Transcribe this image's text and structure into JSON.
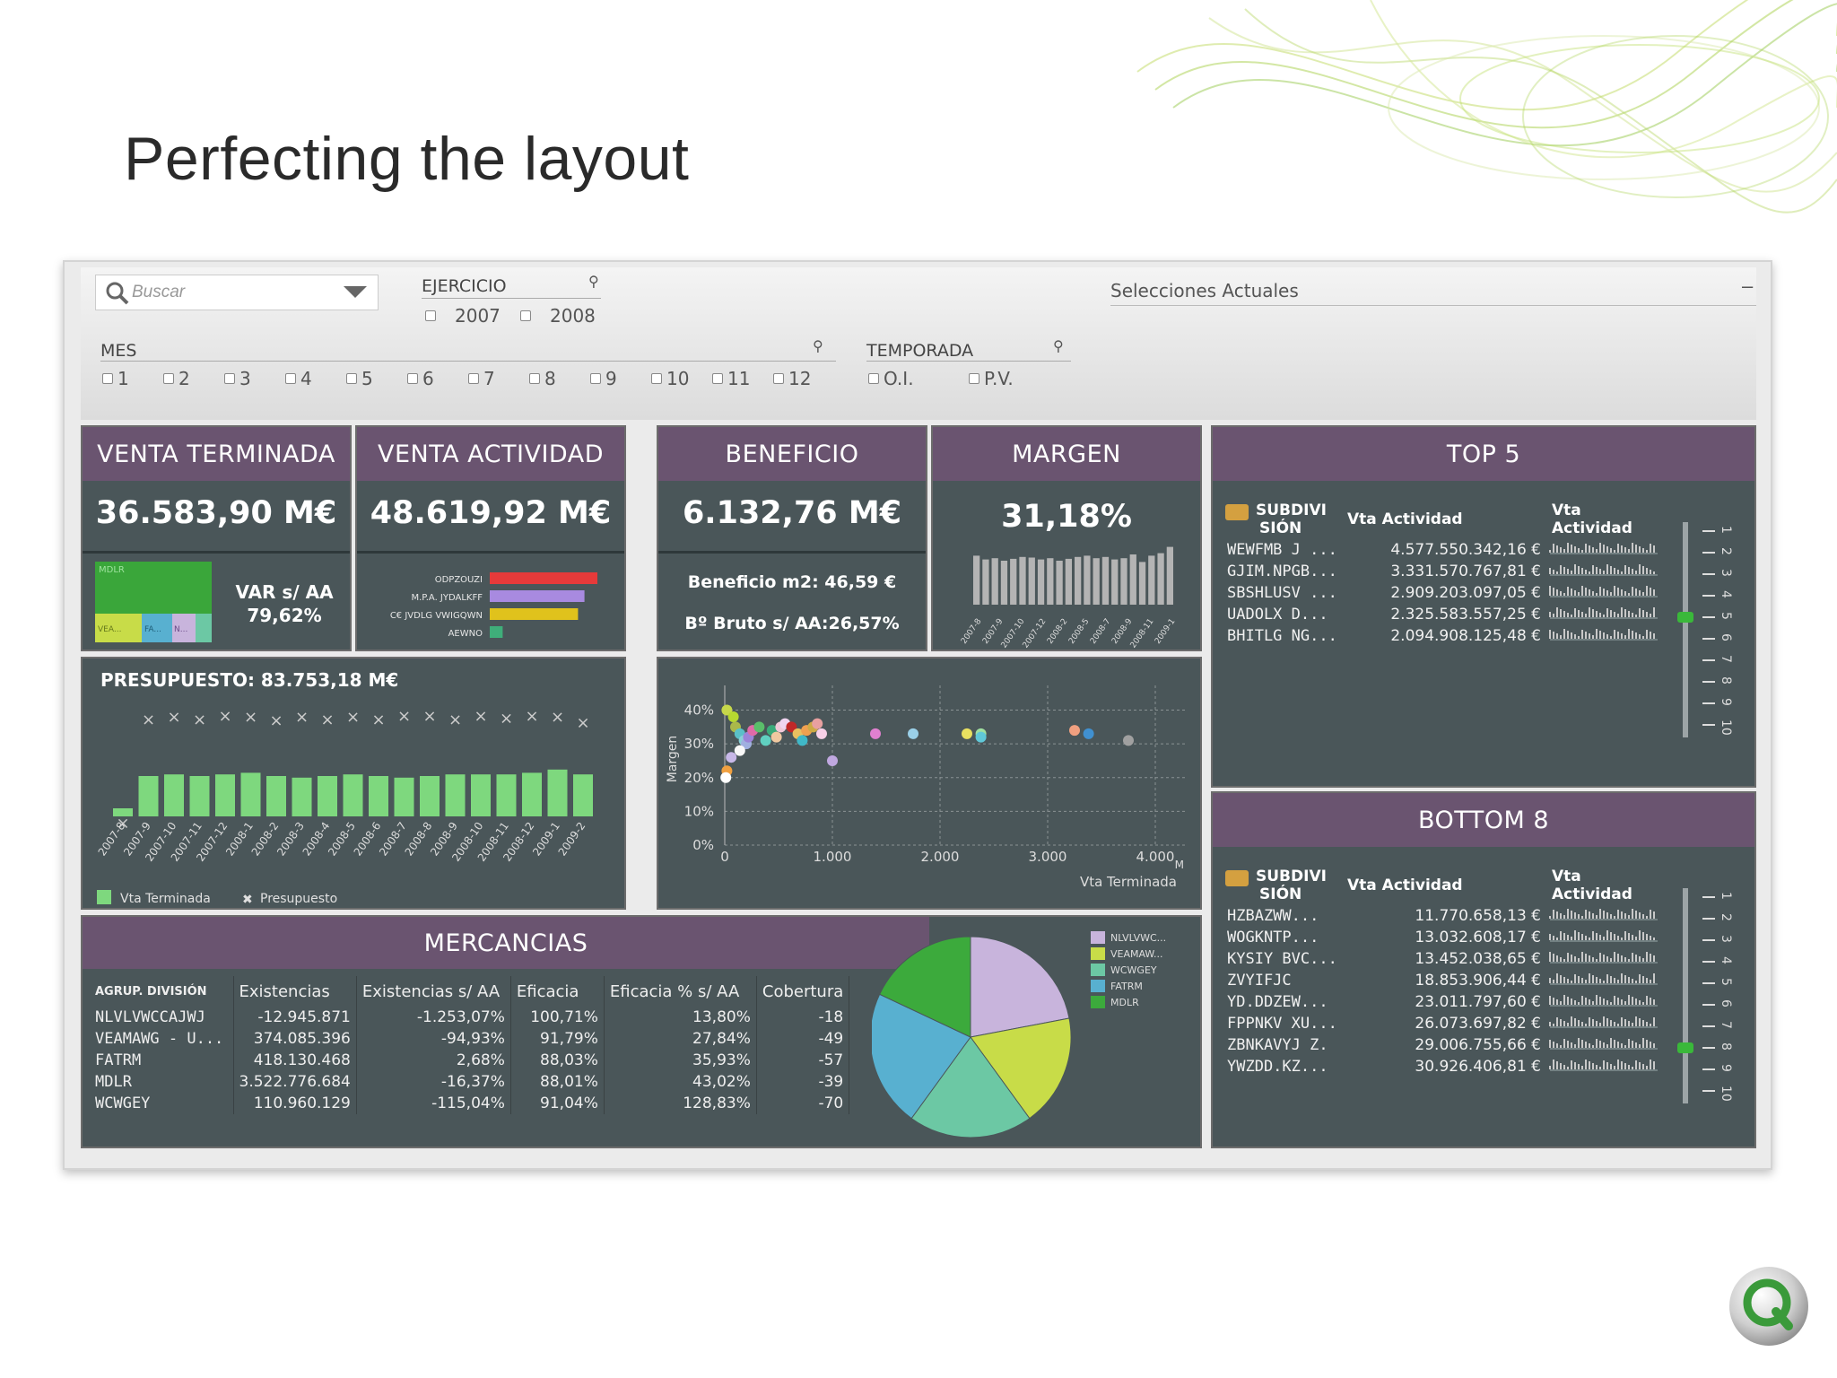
{
  "slide": {
    "title": "Perfecting the layout"
  },
  "search": {
    "placeholder": "Buscar"
  },
  "filters": {
    "ejercicio": {
      "label": "EJERCICIO",
      "options": [
        "2007",
        "2008"
      ]
    },
    "mes": {
      "label": "MES",
      "options": [
        "1",
        "2",
        "3",
        "4",
        "5",
        "6",
        "7",
        "8",
        "9",
        "10",
        "11",
        "12"
      ]
    },
    "temporada": {
      "label": "TEMPORADA",
      "options": [
        "O.I.",
        "P.V."
      ]
    },
    "selecciones": {
      "label": "Selecciones Actuales",
      "minimize": "–"
    }
  },
  "kpis": {
    "venta_terminada": {
      "label": "VENTA TERMINADA",
      "value": "36.583,90 M€",
      "var_label": "VAR s/ AA",
      "var_value": "79,62%",
      "treemap_labels": [
        "MDLR",
        "VEA...",
        "FA...",
        "N..."
      ]
    },
    "venta_actividad": {
      "label": "VENTA  ACTIVIDAD",
      "value": "48.619,92 M€",
      "bars": [
        {
          "name": "ODPZOUZI",
          "value": 100,
          "color": "#e63a3a"
        },
        {
          "name": "M.P.A. JYDALKFF",
          "value": 88,
          "color": "#a88ae0"
        },
        {
          "name": "C€ JVDLG VWIGQWN",
          "value": 82,
          "color": "#e0c21c"
        },
        {
          "name": "AEWNO",
          "value": 12,
          "color": "#3fae7a"
        }
      ]
    },
    "beneficio": {
      "label": "BENEFICIO",
      "value": "6.132,76 M€",
      "m2": "Beneficio m2: 46,59 €",
      "bruto": "Bº Bruto s/ AA:26,57%"
    },
    "margen": {
      "label": "MARGEN",
      "value": "31,18%",
      "spark": [
        78,
        72,
        74,
        70,
        73,
        76,
        75,
        72,
        74,
        70,
        73,
        76,
        78,
        74,
        76,
        72,
        74,
        80,
        68,
        78,
        82,
        92
      ],
      "ticks": [
        "2007-8",
        "2007-9",
        "2007-10",
        "2007-12",
        "2008-2",
        "2008-5",
        "2008-7",
        "2008-9",
        "2008-11",
        "2009-1"
      ]
    }
  },
  "chart_data": [
    {
      "type": "bar",
      "title": "PRESUPUESTO: 83.753,18 M€",
      "categories": [
        "2007-8",
        "2007-9",
        "2007-10",
        "2007-11",
        "2007-12",
        "2008-1",
        "2008-2",
        "2008-3",
        "2008-4",
        "2008-5",
        "2008-6",
        "2008-7",
        "2008-8",
        "2008-9",
        "2008-10",
        "2008-11",
        "2008-12",
        "2009-1",
        "2009-2"
      ],
      "series": [
        {
          "name": "Vta Terminada",
          "values": [
            10,
            50,
            52,
            50,
            52,
            54,
            50,
            48,
            50,
            52,
            50,
            48,
            50,
            52,
            52,
            52,
            54,
            58,
            52
          ]
        },
        {
          "name": "Presupuesto",
          "values": [
            25,
            114,
            116,
            114,
            117,
            116,
            113,
            116,
            114,
            116,
            114,
            117,
            117,
            114,
            117,
            115,
            117,
            116,
            111
          ]
        }
      ]
    },
    {
      "type": "scatter",
      "xlabel": "Vta Terminada",
      "ylabel": "Margen",
      "x_unit": "M",
      "xlim": [
        0,
        4300
      ],
      "ylim": [
        0,
        42
      ],
      "x_ticks": [
        "0",
        "1.000",
        "2.000",
        "3.000",
        "4.000"
      ],
      "y_ticks": [
        "0%",
        "10%",
        "20%",
        "30%",
        "40%"
      ],
      "points": [
        {
          "x": 20,
          "y": 40,
          "c": "#c6d84a"
        },
        {
          "x": 80,
          "y": 38,
          "c": "#b6d830"
        },
        {
          "x": 100,
          "y": 35,
          "c": "#aab84a"
        },
        {
          "x": 140,
          "y": 33,
          "c": "#5ac0c8"
        },
        {
          "x": 180,
          "y": 31,
          "c": "#8ad0d8"
        },
        {
          "x": 200,
          "y": 30,
          "c": "#a0b0e0"
        },
        {
          "x": 220,
          "y": 32,
          "c": "#9c84d8"
        },
        {
          "x": 260,
          "y": 34,
          "c": "#e06aa8"
        },
        {
          "x": 320,
          "y": 35,
          "c": "#5abe6a"
        },
        {
          "x": 380,
          "y": 31,
          "c": "#60d0c0"
        },
        {
          "x": 440,
          "y": 34,
          "c": "#3aaa7a"
        },
        {
          "x": 480,
          "y": 32,
          "c": "#f0c8a0"
        },
        {
          "x": 520,
          "y": 35,
          "c": "#f0c8d8"
        },
        {
          "x": 560,
          "y": 36,
          "c": "#f0d4f0"
        },
        {
          "x": 620,
          "y": 35,
          "c": "#c02828"
        },
        {
          "x": 680,
          "y": 33,
          "c": "#e8c060"
        },
        {
          "x": 720,
          "y": 31,
          "c": "#40b8c8"
        },
        {
          "x": 760,
          "y": 34,
          "c": "#f0a050"
        },
        {
          "x": 820,
          "y": 35,
          "c": "#ccaa44"
        },
        {
          "x": 860,
          "y": 36,
          "c": "#e8a0a0"
        },
        {
          "x": 900,
          "y": 33,
          "c": "#f8d0e8"
        },
        {
          "x": 1000,
          "y": 25,
          "c": "#c0a8e0"
        },
        {
          "x": 1400,
          "y": 33,
          "c": "#e080d0"
        },
        {
          "x": 1750,
          "y": 33,
          "c": "#9ad0e8"
        },
        {
          "x": 2250,
          "y": 33,
          "c": "#e8e060"
        },
        {
          "x": 2380,
          "y": 33,
          "c": "#a0e0a0"
        },
        {
          "x": 2380,
          "y": 32,
          "c": "#60c8d8"
        },
        {
          "x": 3250,
          "y": 34,
          "c": "#f0a080"
        },
        {
          "x": 3380,
          "y": 33,
          "c": "#4090d0"
        },
        {
          "x": 3750,
          "y": 31,
          "c": "#a0a0a0"
        },
        {
          "x": 20,
          "y": 22,
          "c": "#f0a040"
        },
        {
          "x": 10,
          "y": 20,
          "c": "#ffffff"
        },
        {
          "x": 60,
          "y": 26,
          "c": "#c8b8e8"
        },
        {
          "x": 140,
          "y": 28,
          "c": "#f8f8f8"
        }
      ]
    },
    {
      "type": "pie",
      "legend": [
        "NLVLVWC...",
        "VEAMAW...",
        "WCWGEY",
        "FATRM",
        "MDLR"
      ],
      "colors": [
        "#c8b4dc",
        "#c8dc48",
        "#6cc8a4",
        "#58b0d0",
        "#3caa3c"
      ],
      "values": [
        22,
        18,
        20,
        22,
        18
      ]
    }
  ],
  "top5": {
    "title": "TOP 5",
    "col_subdivision": "SUBDIVI SIÓN",
    "col_vta": "Vta Actividad",
    "col_spark": "Vta Actividad",
    "rows": [
      {
        "name": "WEWFMB J ...",
        "value": "4.577.550.342,16 €"
      },
      {
        "name": "GJIM.NPGB...",
        "value": "3.331.570.767,81 €"
      },
      {
        "name": "SBSHLUSV ...",
        "value": "2.909.203.097,05 €"
      },
      {
        "name": "UADOLX D...",
        "value": "2.325.583.557,25 €"
      },
      {
        "name": "BHITLG NG...",
        "value": "2.094.908.125,48 €"
      }
    ],
    "slider_ticks": [
      "1",
      "2",
      "3",
      "4",
      "5",
      "6",
      "7",
      "8",
      "9",
      "10"
    ],
    "slider_value": 5
  },
  "bottom8": {
    "title": "BOTTOM 8",
    "col_subdivision": "SUBDIVI SIÓN",
    "col_vta": "Vta Actividad",
    "col_spark": "Vta Actividad",
    "rows": [
      {
        "name": "HZBAZWW...",
        "value": "11.770.658,13 €"
      },
      {
        "name": "WOGKNTP...",
        "value": "13.032.608,17 €"
      },
      {
        "name": "KYSIY BVC...",
        "value": "13.452.038,65 €"
      },
      {
        "name": "ZVYIFJC",
        "value": "18.853.906,44 €"
      },
      {
        "name": "YD.DDZEW...",
        "value": "23.011.797,60 €"
      },
      {
        "name": "FPPNKV XU...",
        "value": "26.073.697,82 €"
      },
      {
        "name": "ZBNKAVYJ Z.",
        "value": "29.006.755,66 €"
      },
      {
        "name": "YWZDD.KZ...",
        "value": "30.926.406,81 €"
      }
    ],
    "slider_ticks": [
      "1",
      "2",
      "3",
      "4",
      "5",
      "6",
      "7",
      "8",
      "9",
      "10"
    ],
    "slider_value": 8
  },
  "mercancias": {
    "title": "MERCANCIAS",
    "columns": [
      "AGRUP. DIVISIÓN",
      "Existencias",
      "Existencias s/ AA",
      "Eficacia",
      "Eficacia % s/ AA",
      "Cobertura"
    ],
    "rows": [
      [
        "NLVLVWCCAJWJ",
        "-12.945.871",
        "-1.253,07%",
        "100,71%",
        "13,80%",
        "-18"
      ],
      [
        "VEAMAWG - U...",
        "374.085.396",
        "-94,93%",
        "91,79%",
        "27,84%",
        "-49"
      ],
      [
        "FATRM",
        "418.130.468",
        "2,68%",
        "88,03%",
        "35,93%",
        "-57"
      ],
      [
        "MDLR",
        "3.522.776.684",
        "-16,37%",
        "88,01%",
        "43,02%",
        "-39"
      ],
      [
        "WCWGEY",
        "110.960.129",
        "-115,04%",
        "91,04%",
        "128,83%",
        "-70"
      ]
    ]
  },
  "colors": {
    "panel": "#4a5659",
    "header": "#6a5470",
    "bar_green": "#7ed87e"
  }
}
